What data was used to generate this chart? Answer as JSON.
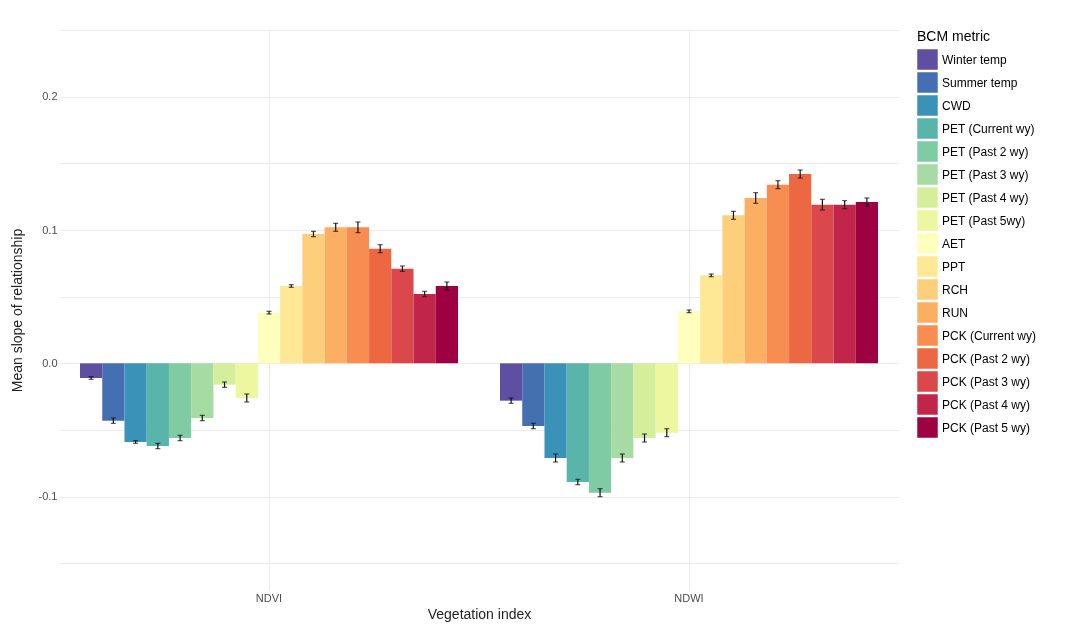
{
  "chart_data": {
    "type": "bar",
    "xlabel": "Vegetation index",
    "ylabel": "Mean slope of relationship",
    "legend_title": "BCM metric",
    "categories": [
      "NDVI",
      "NDWI"
    ],
    "ylim": [
      -0.17,
      0.25
    ],
    "yticks": [
      {
        "value": -0.15,
        "label": null
      },
      {
        "value": -0.1,
        "label": "-0.1"
      },
      {
        "value": -0.05,
        "label": null
      },
      {
        "value": 0,
        "label": "0.0"
      },
      {
        "value": 0.05,
        "label": null
      },
      {
        "value": 0.1,
        "label": "0.1"
      },
      {
        "value": 0.15,
        "label": null
      },
      {
        "value": 0.2,
        "label": "0.2"
      },
      {
        "value": 0.25,
        "label": null
      }
    ],
    "grid": true,
    "legend": "right",
    "series": [
      {
        "name": "Winter temp",
        "color": "#5e4fa2",
        "values": [
          -0.011,
          -0.028
        ],
        "errors": [
          0.001,
          0.002
        ]
      },
      {
        "name": "Summer temp",
        "color": "#4470b1",
        "values": [
          -0.043,
          -0.047
        ],
        "errors": [
          0.002,
          0.002
        ]
      },
      {
        "name": "CWD",
        "color": "#3b92b8",
        "values": [
          -0.059,
          -0.071
        ],
        "errors": [
          0.001,
          0.003
        ]
      },
      {
        "name": "PET (Current wy)",
        "color": "#59b4aa",
        "values": [
          -0.062,
          -0.089
        ],
        "errors": [
          0.002,
          0.002
        ]
      },
      {
        "name": "PET (Past 2 wy)",
        "color": "#7ecba4",
        "values": [
          -0.056,
          -0.097
        ],
        "errors": [
          0.002,
          0.003
        ]
      },
      {
        "name": "PET (Past 3 wy)",
        "color": "#a6dba4",
        "values": [
          -0.041,
          -0.071
        ],
        "errors": [
          0.002,
          0.003
        ]
      },
      {
        "name": "PET (Past 4 wy)",
        "color": "#d5ee9b",
        "values": [
          -0.016,
          -0.056
        ],
        "errors": [
          0.002,
          0.003
        ]
      },
      {
        "name": "PET (Past 5wy)",
        "color": "#ecf7a0",
        "values": [
          -0.026,
          -0.052
        ],
        "errors": [
          0.003,
          0.003
        ]
      },
      {
        "name": "AET",
        "color": "#fefebd",
        "values": [
          0.038,
          0.039
        ],
        "errors": [
          0.001,
          0.001
        ]
      },
      {
        "name": "PPT",
        "color": "#fee895",
        "values": [
          0.058,
          0.066
        ],
        "errors": [
          0.001,
          0.001
        ]
      },
      {
        "name": "RCH",
        "color": "#fdcf7b",
        "values": [
          0.097,
          0.111
        ],
        "errors": [
          0.002,
          0.003
        ]
      },
      {
        "name": "RUN",
        "color": "#fcaf62",
        "values": [
          0.102,
          0.124
        ],
        "errors": [
          0.003,
          0.004
        ]
      },
      {
        "name": "PCK (Current wy)",
        "color": "#f78d50",
        "values": [
          0.102,
          0.134
        ],
        "errors": [
          0.004,
          0.003
        ]
      },
      {
        "name": "PCK (Past 2 wy)",
        "color": "#ec6843",
        "values": [
          0.086,
          0.142
        ],
        "errors": [
          0.003,
          0.003
        ]
      },
      {
        "name": "PCK (Past 3 wy)",
        "color": "#da484c",
        "values": [
          0.071,
          0.119
        ],
        "errors": [
          0.002,
          0.004
        ]
      },
      {
        "name": "PCK (Past 4 wy)",
        "color": "#c1264a",
        "values": [
          0.052,
          0.119
        ],
        "errors": [
          0.002,
          0.003
        ]
      },
      {
        "name": "PCK (Past 5 wy)",
        "color": "#9e0142",
        "values": [
          0.058,
          0.121
        ],
        "errors": [
          0.003,
          0.003
        ]
      }
    ]
  }
}
